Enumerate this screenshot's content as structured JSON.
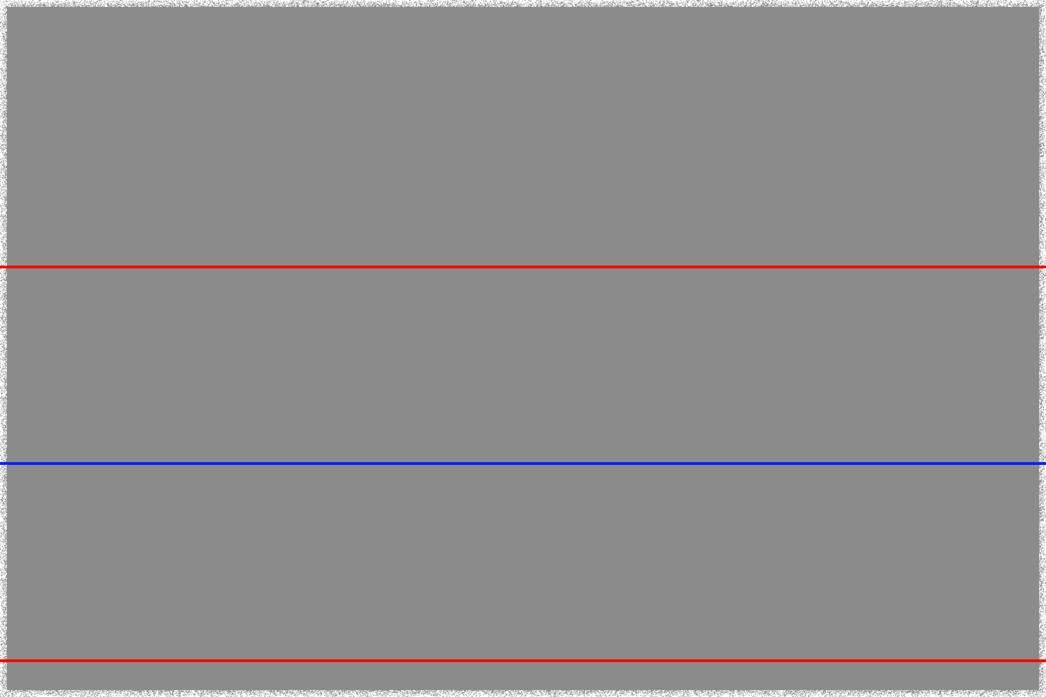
{
  "image": {
    "background_color": "#8b8b8b",
    "border_style": "speckled noise",
    "border_color": "#ffffff"
  },
  "lines": [
    {
      "name": "top-red-line",
      "color": "#ff0000"
    },
    {
      "name": "middle-blue-line",
      "color": "#0022ff"
    },
    {
      "name": "bottom-red-line",
      "color": "#ff0000"
    }
  ]
}
